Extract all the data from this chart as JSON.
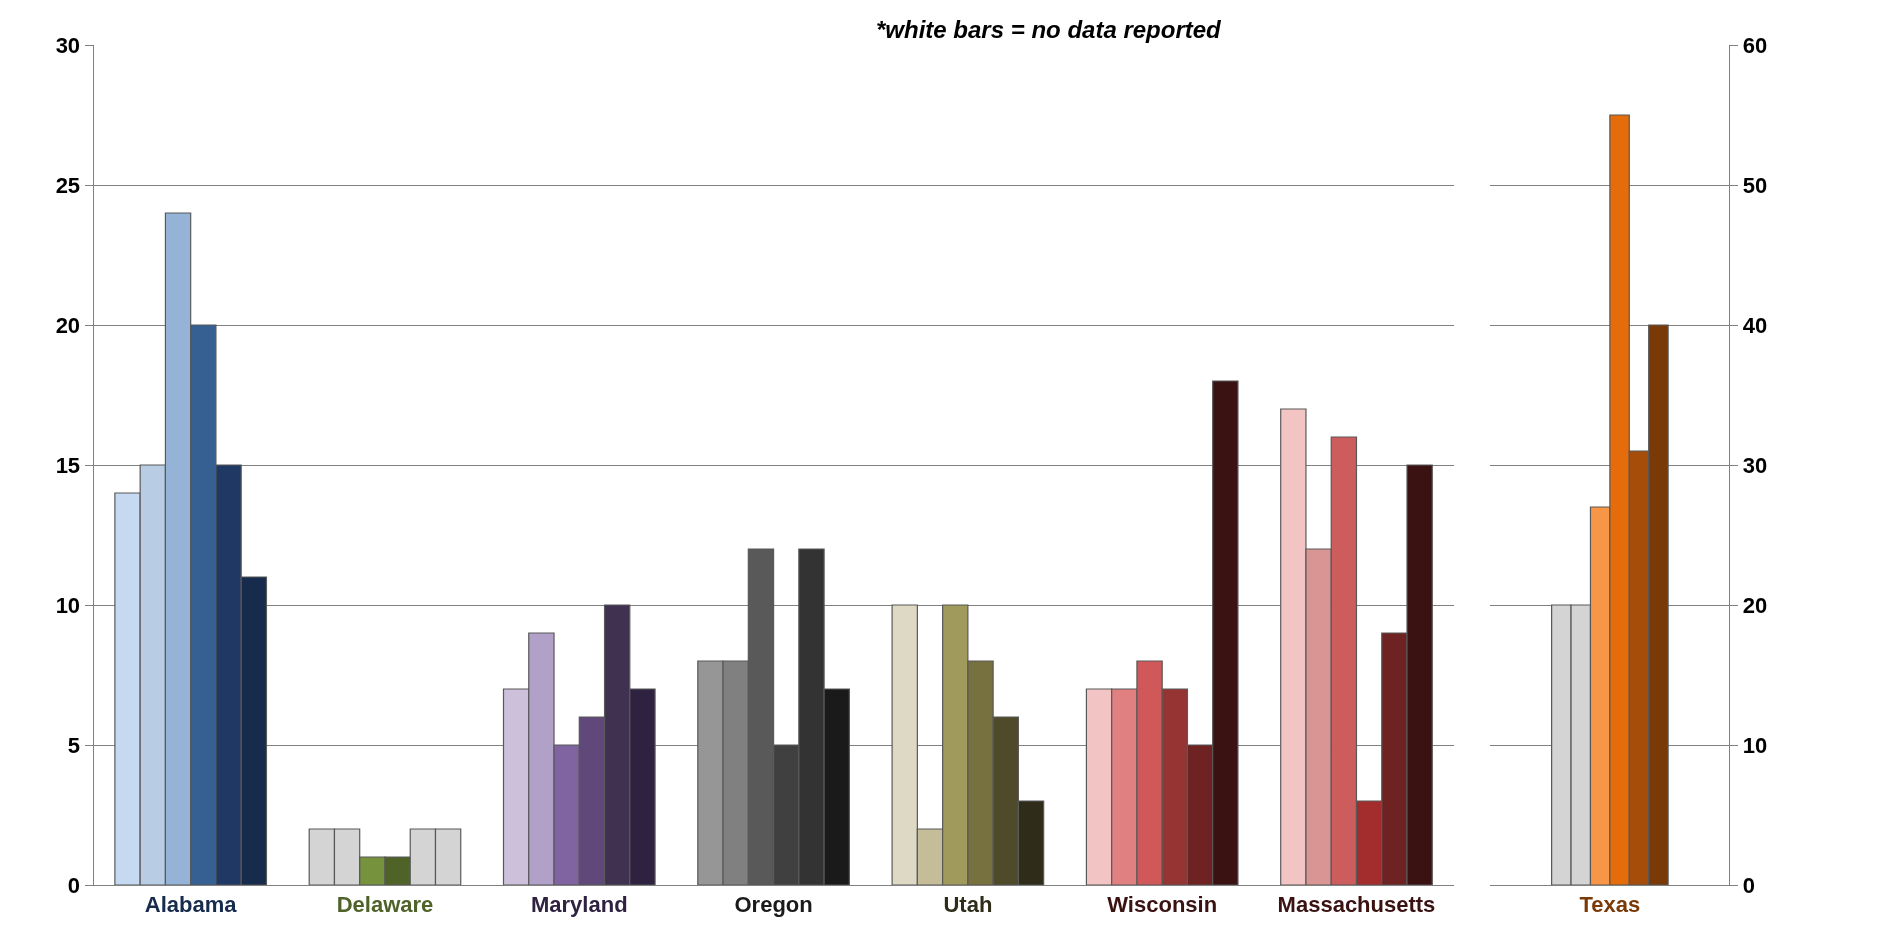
{
  "chart_data": [
    {
      "type": "bar",
      "categories": [
        "Alabama",
        "Delaware",
        "Maryland",
        "Oregon",
        "Utah",
        "Wisconsin",
        "Massachusetts"
      ],
      "ylim": [
        0,
        30
      ],
      "yticks": [
        0,
        5,
        10,
        15,
        20,
        25,
        30
      ],
      "grid": "y",
      "annotations": [
        "*white bars = no data reported"
      ],
      "series": [
        {
          "values": [
            14,
            2,
            7,
            8,
            10,
            7,
            17
          ],
          "colors": [
            "#c5d9f1",
            "#d4d4d4",
            "#ccc0da",
            "#969696",
            "#ddd9c4",
            "#f2c4c4",
            "#f2c4c4"
          ]
        },
        {
          "values": [
            15,
            2,
            9,
            8,
            2,
            7,
            12
          ],
          "colors": [
            "#b8cce4",
            "#d4d4d4",
            "#b1a0c7",
            "#808080",
            "#c4bd97",
            "#e08080",
            "#d99594"
          ]
        },
        {
          "values": [
            24,
            1,
            5,
            12,
            10,
            8,
            16
          ],
          "colors": [
            "#95b3d7",
            "#76923c",
            "#8064a2",
            "#595959",
            "#a09a5c",
            "#d05858",
            "#cd5c5c"
          ]
        },
        {
          "values": [
            20,
            1,
            6,
            5,
            8,
            7,
            3
          ],
          "colors": [
            "#366092",
            "#4f6228",
            "#60497a",
            "#404040",
            "#77703f",
            "#963434",
            "#a32c2c"
          ]
        },
        {
          "values": [
            15,
            2,
            10,
            12,
            6,
            5,
            9
          ],
          "colors": [
            "#1f3864",
            "#d4d4d4",
            "#403151",
            "#333333",
            "#4f4b2a",
            "#6e2222",
            "#6e2222"
          ]
        },
        {
          "values": [
            11,
            2,
            7,
            7,
            3,
            18,
            15
          ],
          "colors": [
            "#172b4d",
            "#d4d4d4",
            "#2e2240",
            "#1a1a1a",
            "#2f2d1a",
            "#3a1212",
            "#3a1212"
          ]
        }
      ]
    },
    {
      "type": "bar",
      "categories": [
        "Texas"
      ],
      "ylim": [
        0,
        60
      ],
      "yticks": [
        0,
        10,
        20,
        30,
        40,
        50,
        60
      ],
      "grid": "y",
      "series": [
        {
          "values": [
            20
          ],
          "colors": [
            "#d4d4d4"
          ]
        },
        {
          "values": [
            20
          ],
          "colors": [
            "#d4d4d4"
          ]
        },
        {
          "values": [
            27
          ],
          "colors": [
            "#f79646"
          ]
        },
        {
          "values": [
            55
          ],
          "colors": [
            "#e46c0a"
          ]
        },
        {
          "values": [
            31
          ],
          "colors": [
            "#a64d0a"
          ]
        },
        {
          "values": [
            40
          ],
          "colors": [
            "#7a3a08"
          ]
        }
      ]
    }
  ]
}
